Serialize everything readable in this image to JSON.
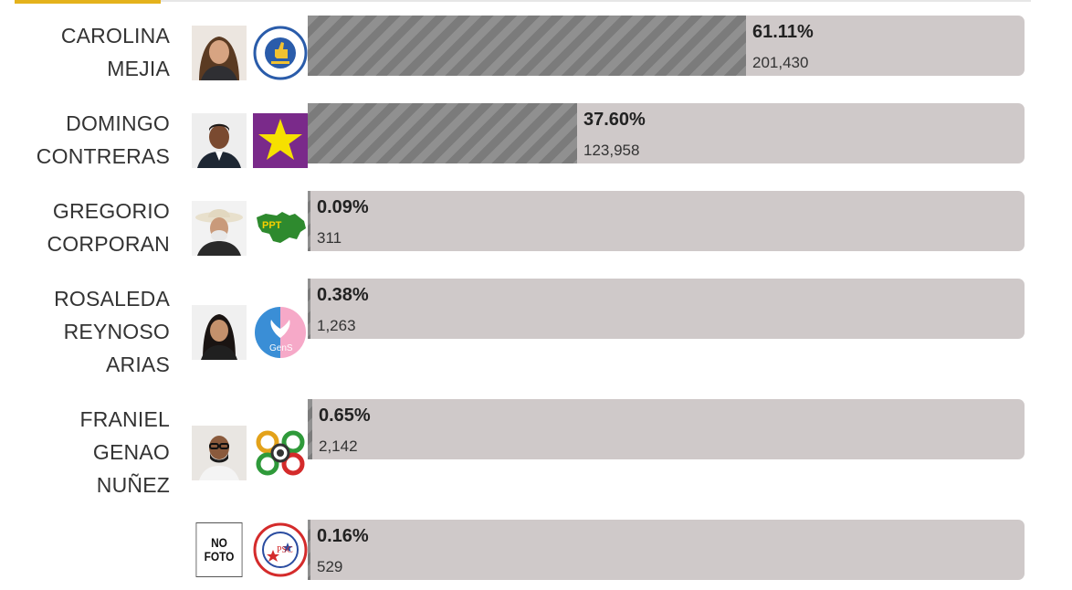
{
  "colors": {
    "accent": "#e4b21c",
    "bar_track": "#cfc9c9",
    "bar_fill": "#7b7b7b"
  },
  "candidates": [
    {
      "name_lines": [
        "CAROLINA",
        "MEJIA"
      ],
      "percent": "61.11%",
      "votes": "201,430",
      "share": 0.6111,
      "photo": "candidate-photo",
      "party_logo": "prm-party-logo"
    },
    {
      "name_lines": [
        "DOMINGO",
        "CONTRERAS"
      ],
      "percent": "37.60%",
      "votes": "123,958",
      "share": 0.376,
      "photo": "candidate-photo",
      "party_logo": "pld-star-logo"
    },
    {
      "name_lines": [
        "GREGORIO",
        "CORPORAN"
      ],
      "percent": "0.09%",
      "votes": "311",
      "share": 0.0009,
      "photo": "candidate-photo",
      "party_logo": "ppt-party-logo"
    },
    {
      "name_lines": [
        "ROSALEDA",
        "REYNOSO",
        "ARIAS"
      ],
      "percent": "0.38%",
      "votes": "1,263",
      "share": 0.0038,
      "photo": "candidate-photo",
      "party_logo": "gens-party-logo"
    },
    {
      "name_lines": [
        "FRANIEL",
        "GENAO",
        "NUÑEZ"
      ],
      "percent": "0.65%",
      "votes": "2,142",
      "share": 0.0065,
      "photo": "candidate-photo",
      "party_logo": "opcion-democratica-logo"
    },
    {
      "name_lines": [],
      "percent": "0.16%",
      "votes": "529",
      "share": 0.0016,
      "photo": "no-photo",
      "photo_text": [
        "NO",
        "FOTO"
      ],
      "party_logo": "psc-party-logo"
    }
  ]
}
